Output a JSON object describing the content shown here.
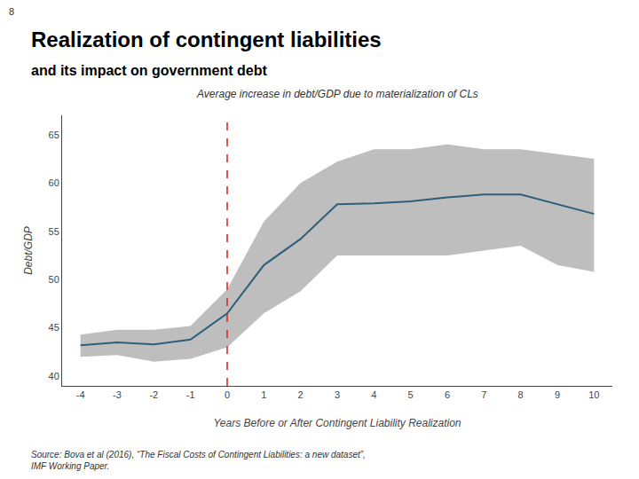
{
  "chart_data": {
    "type": "line",
    "title": "Realization of contingent liabilities",
    "subtitle": "and its impact on government debt",
    "annotations": [
      "8",
      "Average increase in debt/GDP due to materialization of CLs",
      "Source: Bova et al (2016), “The Fiscal Costs of Contingent Liabilities: a new dataset”,\nIMF Working Paper."
    ],
    "xlabel": "Years Before or After Contingent Liability Realization",
    "ylabel": "Debt/GDP",
    "x": [
      -4,
      -3,
      -2,
      -1,
      0,
      1,
      2,
      3,
      4,
      5,
      6,
      7,
      8,
      9,
      10
    ],
    "series": [
      {
        "type": "band",
        "color": "#bebebe",
        "upper": [
          44.3,
          44.8,
          44.8,
          45.2,
          49.0,
          56.0,
          60.0,
          62.2,
          63.5,
          63.5,
          64.0,
          63.5,
          63.5,
          63.0,
          62.5
        ],
        "lower": [
          42.0,
          42.2,
          41.5,
          41.8,
          43.0,
          46.5,
          48.8,
          52.5,
          52.5,
          52.5,
          52.5,
          53.0,
          53.5,
          51.5,
          50.8
        ]
      },
      {
        "type": "line",
        "color": "#2e5f7a",
        "values": [
          43.2,
          43.5,
          43.3,
          43.8,
          46.5,
          51.5,
          54.2,
          57.8,
          57.9,
          58.1,
          58.5,
          58.8,
          58.8,
          57.8,
          56.8
        ]
      }
    ],
    "vlines": [
      {
        "value": 0,
        "color": "#cc2222",
        "line_style": "dashed"
      }
    ],
    "xlim": [
      -4.5,
      10.5
    ],
    "xticks": [
      -4,
      -3,
      -2,
      -1,
      0,
      1,
      2,
      3,
      4,
      5,
      6,
      7,
      8,
      9,
      10
    ],
    "ylim": [
      39,
      67
    ],
    "yticks": [
      40,
      45,
      50,
      55,
      60,
      65
    ],
    "grid": false
  }
}
